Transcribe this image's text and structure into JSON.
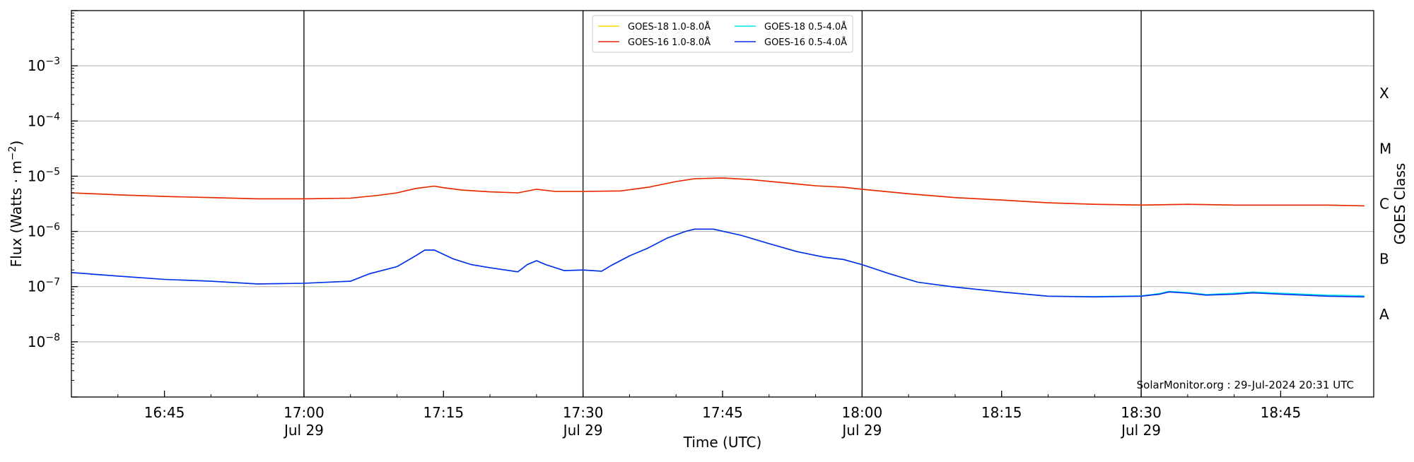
{
  "chart_data": {
    "type": "line",
    "xlabel": "Time (UTC)",
    "ylabel": "Flux (Watts · m⁻²)",
    "y2label": "GOES Class",
    "yscale": "log",
    "xlim": [
      "2024-07-29 16:35",
      "2024-07-29 18:55"
    ],
    "ylim": [
      1e-09,
      0.01
    ],
    "grid": "horizontal at decades",
    "legend_placement": "top-center",
    "credit": "SolarMonitor.org : 29-Jul-2024 20:31 UTC",
    "x_ticks": [
      {
        "time": "2024-07-29 16:45",
        "line1": "16:45",
        "line2": ""
      },
      {
        "time": "2024-07-29 17:00",
        "line1": "17:00",
        "line2": "Jul 29"
      },
      {
        "time": "2024-07-29 17:15",
        "line1": "17:15",
        "line2": ""
      },
      {
        "time": "2024-07-29 17:30",
        "line1": "17:30",
        "line2": "Jul 29"
      },
      {
        "time": "2024-07-29 17:45",
        "line1": "17:45",
        "line2": ""
      },
      {
        "time": "2024-07-29 18:00",
        "line1": "18:00",
        "line2": "Jul 29"
      },
      {
        "time": "2024-07-29 18:15",
        "line1": "18:15",
        "line2": ""
      },
      {
        "time": "2024-07-29 18:30",
        "line1": "18:30",
        "line2": "Jul 29"
      },
      {
        "time": "2024-07-29 18:45",
        "line1": "18:45",
        "line2": ""
      }
    ],
    "vlines": [
      "2024-07-29 17:00",
      "2024-07-29 17:30",
      "2024-07-29 18:00",
      "2024-07-29 18:30"
    ],
    "y_ticks": [
      {
        "value": 1e-08,
        "base": "10",
        "exp": "−8"
      },
      {
        "value": 1e-07,
        "base": "10",
        "exp": "−7"
      },
      {
        "value": 1e-06,
        "base": "10",
        "exp": "−6"
      },
      {
        "value": 1e-05,
        "base": "10",
        "exp": "−5"
      },
      {
        "value": 0.0001,
        "base": "10",
        "exp": "−4"
      },
      {
        "value": 0.001,
        "base": "10",
        "exp": "−3"
      }
    ],
    "goes_classes": [
      {
        "label": "A",
        "value": 3.16e-08
      },
      {
        "label": "B",
        "value": 3.16e-07
      },
      {
        "label": "C",
        "value": 3.16e-06
      },
      {
        "label": "M",
        "value": 3.16e-05
      },
      {
        "label": "X",
        "value": 0.000316
      }
    ],
    "series": [
      {
        "name": "GOES-18 1.0-8.0Å",
        "color": "#ffd700",
        "x": [
          "2024-07-29 16:35",
          "2024-07-29 16:40",
          "2024-07-29 16:45",
          "2024-07-29 16:50",
          "2024-07-29 16:55",
          "2024-07-29 17:00",
          "2024-07-29 17:05",
          "2024-07-29 17:08",
          "2024-07-29 17:10",
          "2024-07-29 17:12",
          "2024-07-29 17:14",
          "2024-07-29 17:15",
          "2024-07-29 17:17",
          "2024-07-29 17:20",
          "2024-07-29 17:23",
          "2024-07-29 17:25",
          "2024-07-29 17:27",
          "2024-07-29 17:30",
          "2024-07-29 17:34",
          "2024-07-29 17:37",
          "2024-07-29 17:40",
          "2024-07-29 17:42",
          "2024-07-29 17:45",
          "2024-07-29 17:48",
          "2024-07-29 17:52",
          "2024-07-29 17:55",
          "2024-07-29 17:58",
          "2024-07-29 18:00",
          "2024-07-29 18:05",
          "2024-07-29 18:10",
          "2024-07-29 18:15",
          "2024-07-29 18:20",
          "2024-07-29 18:25",
          "2024-07-29 18:30",
          "2024-07-29 18:35",
          "2024-07-29 18:40",
          "2024-07-29 18:45",
          "2024-07-29 18:50",
          "2024-07-29 18:54"
        ],
        "y": [
          5e-06,
          4.6e-06,
          4.3e-06,
          4.1e-06,
          3.9e-06,
          3.9e-06,
          4e-06,
          4.5e-06,
          5e-06,
          6e-06,
          6.6e-06,
          6.2e-06,
          5.6e-06,
          5.2e-06,
          5e-06,
          5.8e-06,
          5.3e-06,
          5.3e-06,
          5.4e-06,
          6.3e-06,
          8e-06,
          9e-06,
          9.3e-06,
          8.7e-06,
          7.5e-06,
          6.7e-06,
          6.3e-06,
          5.8e-06,
          4.8e-06,
          4.1e-06,
          3.7e-06,
          3.3e-06,
          3.1e-06,
          3e-06,
          3.1e-06,
          3e-06,
          3e-06,
          3e-06,
          2.9e-06
        ]
      },
      {
        "name": "GOES-16 1.0-8.0Å",
        "color": "#e8250d",
        "x": [
          "2024-07-29 16:35",
          "2024-07-29 16:40",
          "2024-07-29 16:45",
          "2024-07-29 16:50",
          "2024-07-29 16:55",
          "2024-07-29 17:00",
          "2024-07-29 17:05",
          "2024-07-29 17:08",
          "2024-07-29 17:10",
          "2024-07-29 17:12",
          "2024-07-29 17:14",
          "2024-07-29 17:15",
          "2024-07-29 17:17",
          "2024-07-29 17:20",
          "2024-07-29 17:23",
          "2024-07-29 17:25",
          "2024-07-29 17:27",
          "2024-07-29 17:30",
          "2024-07-29 17:34",
          "2024-07-29 17:37",
          "2024-07-29 17:40",
          "2024-07-29 17:42",
          "2024-07-29 17:45",
          "2024-07-29 17:48",
          "2024-07-29 17:52",
          "2024-07-29 17:55",
          "2024-07-29 17:58",
          "2024-07-29 18:00",
          "2024-07-29 18:05",
          "2024-07-29 18:10",
          "2024-07-29 18:15",
          "2024-07-29 18:20",
          "2024-07-29 18:25",
          "2024-07-29 18:30",
          "2024-07-29 18:35",
          "2024-07-29 18:40",
          "2024-07-29 18:45",
          "2024-07-29 18:50",
          "2024-07-29 18:54"
        ],
        "y": [
          5e-06,
          4.6e-06,
          4.3e-06,
          4.1e-06,
          3.9e-06,
          3.9e-06,
          4e-06,
          4.5e-06,
          5e-06,
          6e-06,
          6.6e-06,
          6.2e-06,
          5.6e-06,
          5.2e-06,
          5e-06,
          5.8e-06,
          5.3e-06,
          5.3e-06,
          5.4e-06,
          6.3e-06,
          8e-06,
          9e-06,
          9.3e-06,
          8.7e-06,
          7.5e-06,
          6.7e-06,
          6.3e-06,
          5.8e-06,
          4.8e-06,
          4.1e-06,
          3.7e-06,
          3.3e-06,
          3.1e-06,
          3e-06,
          3.1e-06,
          3e-06,
          3e-06,
          3e-06,
          2.9e-06
        ]
      },
      {
        "name": "GOES-18 0.5-4.0Å",
        "color": "#00e5ee",
        "x": [
          "2024-07-29 16:35",
          "2024-07-29 16:40",
          "2024-07-29 16:45",
          "2024-07-29 16:50",
          "2024-07-29 16:55",
          "2024-07-29 17:00",
          "2024-07-29 17:05",
          "2024-07-29 17:07",
          "2024-07-29 17:10",
          "2024-07-29 17:12",
          "2024-07-29 17:13",
          "2024-07-29 17:14",
          "2024-07-29 17:16",
          "2024-07-29 17:18",
          "2024-07-29 17:20",
          "2024-07-29 17:23",
          "2024-07-29 17:24",
          "2024-07-29 17:25",
          "2024-07-29 17:26",
          "2024-07-29 17:28",
          "2024-07-29 17:30",
          "2024-07-29 17:32",
          "2024-07-29 17:33",
          "2024-07-29 17:35",
          "2024-07-29 17:37",
          "2024-07-29 17:39",
          "2024-07-29 17:41",
          "2024-07-29 17:42",
          "2024-07-29 17:44",
          "2024-07-29 17:47",
          "2024-07-29 17:50",
          "2024-07-29 17:53",
          "2024-07-29 17:56",
          "2024-07-29 17:58",
          "2024-07-29 18:00",
          "2024-07-29 18:03",
          "2024-07-29 18:06",
          "2024-07-29 18:10",
          "2024-07-29 18:15",
          "2024-07-29 18:20",
          "2024-07-29 18:25",
          "2024-07-29 18:30",
          "2024-07-29 18:32",
          "2024-07-29 18:33",
          "2024-07-29 18:35",
          "2024-07-29 18:37",
          "2024-07-29 18:40",
          "2024-07-29 18:42",
          "2024-07-29 18:45",
          "2024-07-29 18:50",
          "2024-07-29 18:54"
        ],
        "y": [
          1.8e-07,
          1.55e-07,
          1.35e-07,
          1.25e-07,
          1.12e-07,
          1.15e-07,
          1.25e-07,
          1.7e-07,
          2.3e-07,
          3.6e-07,
          4.6e-07,
          4.6e-07,
          3.2e-07,
          2.5e-07,
          2.2e-07,
          1.85e-07,
          2.5e-07,
          2.95e-07,
          2.5e-07,
          1.95e-07,
          2e-07,
          1.9e-07,
          2.4e-07,
          3.6e-07,
          5e-07,
          7.5e-07,
          1e-06,
          1.1e-06,
          1.1e-06,
          8.5e-07,
          6e-07,
          4.3e-07,
          3.4e-07,
          3.1e-07,
          2.5e-07,
          1.7e-07,
          1.2e-07,
          9.8e-08,
          8e-08,
          6.7e-08,
          6.6e-08,
          6.8e-08,
          7.5e-08,
          8.2e-08,
          7.8e-08,
          7.2e-08,
          7.6e-08,
          8e-08,
          7.6e-08,
          7e-08,
          6.8e-08
        ]
      },
      {
        "name": "GOES-16 0.5-4.0Å",
        "color": "#0c2ae8",
        "x": [
          "2024-07-29 16:35",
          "2024-07-29 16:40",
          "2024-07-29 16:45",
          "2024-07-29 16:50",
          "2024-07-29 16:55",
          "2024-07-29 17:00",
          "2024-07-29 17:05",
          "2024-07-29 17:07",
          "2024-07-29 17:10",
          "2024-07-29 17:12",
          "2024-07-29 17:13",
          "2024-07-29 17:14",
          "2024-07-29 17:16",
          "2024-07-29 17:18",
          "2024-07-29 17:20",
          "2024-07-29 17:23",
          "2024-07-29 17:24",
          "2024-07-29 17:25",
          "2024-07-29 17:26",
          "2024-07-29 17:28",
          "2024-07-29 17:30",
          "2024-07-29 17:32",
          "2024-07-29 17:33",
          "2024-07-29 17:35",
          "2024-07-29 17:37",
          "2024-07-29 17:39",
          "2024-07-29 17:41",
          "2024-07-29 17:42",
          "2024-07-29 17:44",
          "2024-07-29 17:47",
          "2024-07-29 17:50",
          "2024-07-29 17:53",
          "2024-07-29 17:56",
          "2024-07-29 17:58",
          "2024-07-29 18:00",
          "2024-07-29 18:03",
          "2024-07-29 18:06",
          "2024-07-29 18:10",
          "2024-07-29 18:15",
          "2024-07-29 18:20",
          "2024-07-29 18:25",
          "2024-07-29 18:30",
          "2024-07-29 18:32",
          "2024-07-29 18:33",
          "2024-07-29 18:35",
          "2024-07-29 18:37",
          "2024-07-29 18:40",
          "2024-07-29 18:42",
          "2024-07-29 18:45",
          "2024-07-29 18:50",
          "2024-07-29 18:54"
        ],
        "y": [
          1.8e-07,
          1.55e-07,
          1.35e-07,
          1.25e-07,
          1.12e-07,
          1.15e-07,
          1.25e-07,
          1.7e-07,
          2.3e-07,
          3.6e-07,
          4.6e-07,
          4.6e-07,
          3.2e-07,
          2.5e-07,
          2.2e-07,
          1.85e-07,
          2.5e-07,
          2.95e-07,
          2.5e-07,
          1.95e-07,
          2e-07,
          1.9e-07,
          2.4e-07,
          3.6e-07,
          5e-07,
          7.5e-07,
          1e-06,
          1.1e-06,
          1.1e-06,
          8.5e-07,
          6e-07,
          4.3e-07,
          3.4e-07,
          3.1e-07,
          2.5e-07,
          1.7e-07,
          1.2e-07,
          9.8e-08,
          8e-08,
          6.7e-08,
          6.5e-08,
          6.7e-08,
          7.3e-08,
          8e-08,
          7.6e-08,
          7e-08,
          7.3e-08,
          7.7e-08,
          7.3e-08,
          6.7e-08,
          6.5e-08
        ]
      }
    ]
  }
}
